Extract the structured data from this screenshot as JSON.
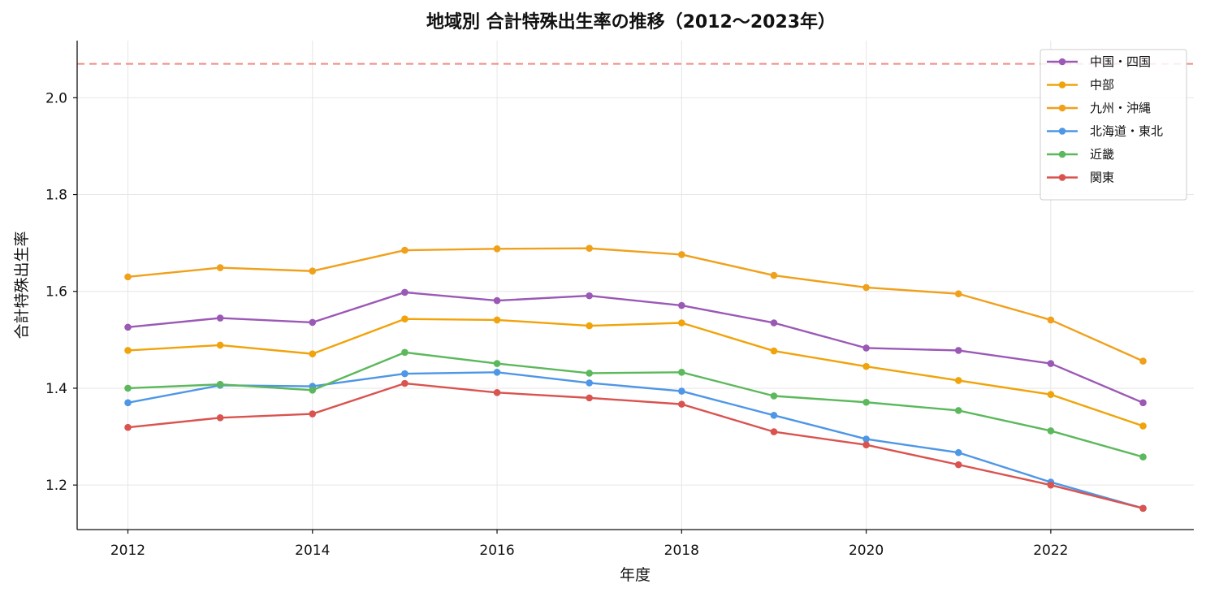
{
  "chart_data": {
    "type": "line",
    "title": "地域別 合計特殊出生率の推移（2012〜2023年）",
    "xlabel": "年度",
    "ylabel": "合計特殊出生率",
    "x": [
      2012,
      2013,
      2014,
      2015,
      2016,
      2017,
      2018,
      2019,
      2020,
      2021,
      2022,
      2023
    ],
    "xticks": [
      2012,
      2014,
      2016,
      2018,
      2020,
      2022
    ],
    "yticks": [
      1.2,
      1.4,
      1.6,
      1.8,
      2.0
    ],
    "xlim": [
      2011.45,
      2023.55
    ],
    "ylim": [
      1.108,
      2.118
    ],
    "grid": true,
    "legend_position": "top-right",
    "reference_line": {
      "value": 2.07,
      "color": "#f28b82",
      "style": "dashed"
    },
    "series": [
      {
        "name": "中国・四国",
        "color": "#9b59b6",
        "values": [
          1.526,
          1.545,
          1.536,
          1.598,
          1.581,
          1.591,
          1.571,
          1.535,
          1.483,
          1.478,
          1.451,
          1.37
        ]
      },
      {
        "name": "中部",
        "color": "#f0a30a",
        "values": [
          1.478,
          1.489,
          1.471,
          1.543,
          1.541,
          1.529,
          1.535,
          1.477,
          1.445,
          1.416,
          1.387,
          1.322
        ]
      },
      {
        "name": "九州・沖縄",
        "color": "#f0a01a",
        "values": [
          1.63,
          1.649,
          1.642,
          1.685,
          1.688,
          1.689,
          1.676,
          1.633,
          1.608,
          1.595,
          1.541,
          1.456
        ]
      },
      {
        "name": "北海道・東北",
        "color": "#4e96e6",
        "values": [
          1.37,
          1.406,
          1.404,
          1.43,
          1.433,
          1.411,
          1.394,
          1.344,
          1.295,
          1.267,
          1.206,
          1.152
        ]
      },
      {
        "name": "近畿",
        "color": "#5cb85c",
        "values": [
          1.4,
          1.408,
          1.396,
          1.474,
          1.451,
          1.431,
          1.433,
          1.384,
          1.371,
          1.354,
          1.312,
          1.258
        ]
      },
      {
        "name": "関東",
        "color": "#d9534f",
        "values": [
          1.319,
          1.339,
          1.347,
          1.41,
          1.391,
          1.38,
          1.367,
          1.31,
          1.283,
          1.242,
          1.2,
          1.152
        ]
      }
    ]
  }
}
